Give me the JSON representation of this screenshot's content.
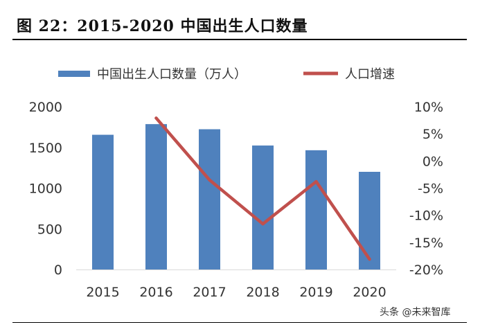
{
  "figure": {
    "title": "图 22：2015-2020 中国出生人口数量",
    "watermark": "头条 @未来智库"
  },
  "chart_data": {
    "type": "bar",
    "categories": [
      "2015",
      "2016",
      "2017",
      "2018",
      "2019",
      "2020"
    ],
    "series": [
      {
        "name": "中国出生人口数量（万人）",
        "type": "bar",
        "axis": "left",
        "color": "#4f81bd",
        "values": [
          1655,
          1786,
          1723,
          1523,
          1465,
          1200
        ]
      },
      {
        "name": "人口增速",
        "type": "line",
        "axis": "right",
        "color": "#c0504d",
        "values": [
          null,
          7.9,
          -3.5,
          -11.6,
          -3.8,
          -18.1
        ]
      }
    ],
    "y_left": {
      "min": 0,
      "max": 2000,
      "ticks": [
        "0",
        "500",
        "1000",
        "1500",
        "2000"
      ]
    },
    "y_right": {
      "min": -20,
      "max": 10,
      "ticks": [
        "-20%",
        "-15%",
        "-10%",
        "-5%",
        "0%",
        "5%",
        "10%"
      ]
    },
    "legend": "top",
    "grid": false
  }
}
